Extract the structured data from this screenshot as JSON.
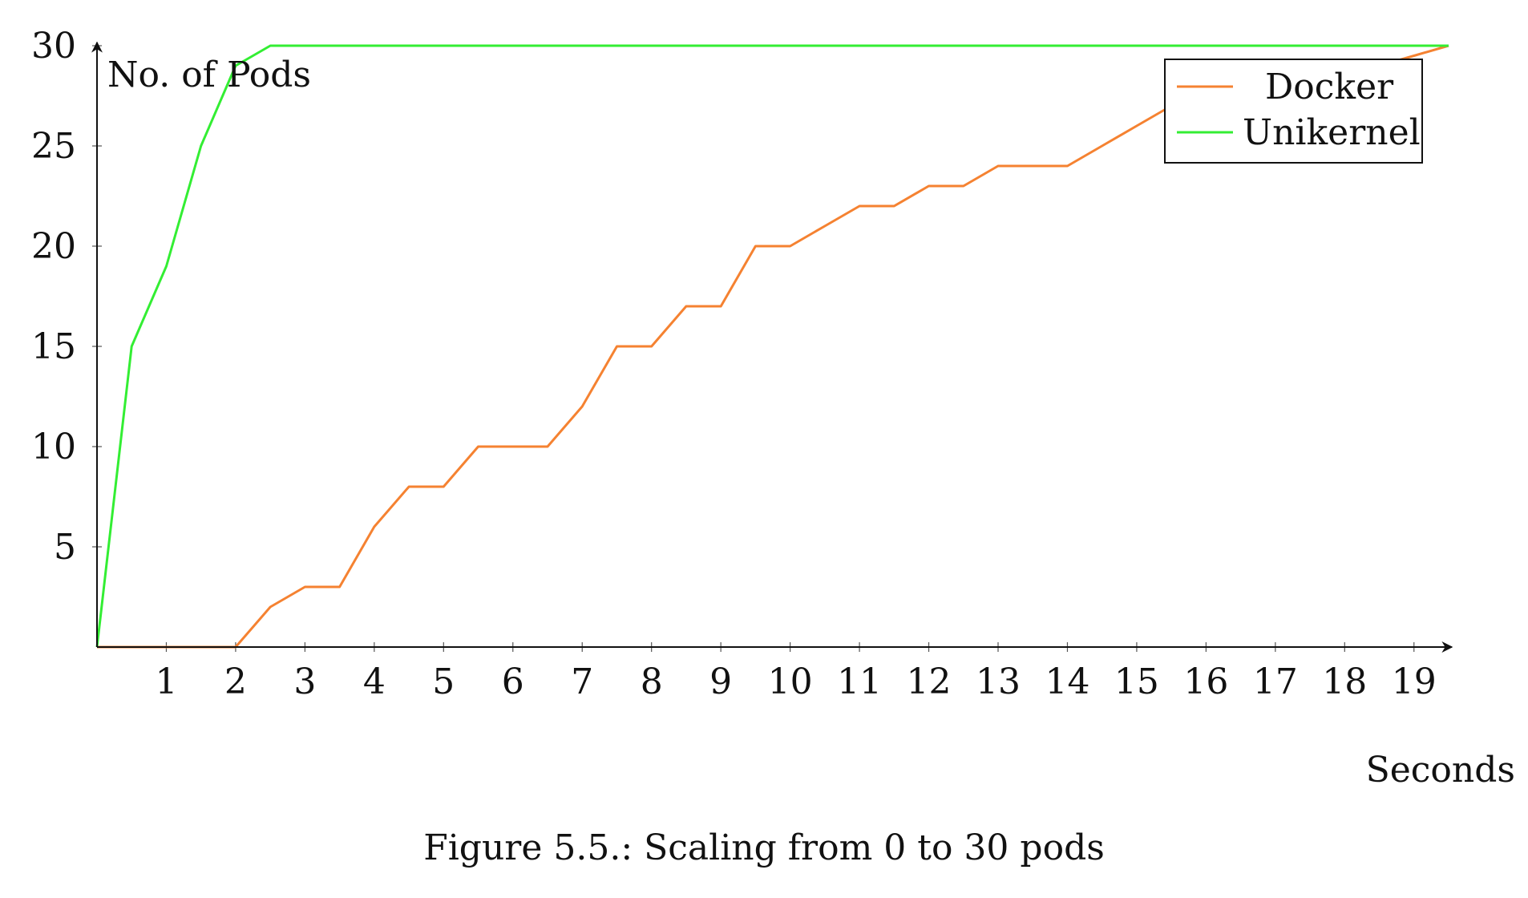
{
  "chart_data": {
    "type": "line",
    "title": "",
    "xlabel": "Seconds",
    "ylabel": "No. of Pods",
    "xlim": [
      0,
      19.5
    ],
    "ylim": [
      0,
      30
    ],
    "x_ticks": [
      1,
      2,
      3,
      4,
      5,
      6,
      7,
      8,
      9,
      10,
      11,
      12,
      13,
      14,
      15,
      16,
      17,
      18,
      19
    ],
    "y_ticks": [
      5,
      10,
      15,
      20,
      25,
      30
    ],
    "grid": false,
    "legend_position": "top-right",
    "series": [
      {
        "name": "Docker",
        "color": "#f58231",
        "x": [
          0,
          0.5,
          1,
          1.5,
          2,
          2.5,
          3,
          3.5,
          4,
          4.5,
          5,
          5.5,
          6,
          6.5,
          7,
          7.5,
          8,
          8.5,
          9,
          9.5,
          10,
          10.5,
          11,
          11.5,
          12,
          12.5,
          13,
          13.5,
          14,
          14.5,
          15,
          15.5,
          16,
          16.5,
          17,
          17.5,
          18,
          18.5,
          19,
          19.5
        ],
        "y": [
          0,
          0,
          0,
          0,
          0,
          2,
          3,
          3,
          6,
          8,
          8,
          10,
          10,
          10,
          12,
          15,
          15,
          17,
          17,
          20,
          20,
          21,
          22,
          22,
          23,
          23,
          24,
          24,
          24,
          25,
          26,
          27,
          28,
          28,
          28,
          28.5,
          28.5,
          29,
          29.5,
          30
        ]
      },
      {
        "name": "Unikernel",
        "color": "#33ee33",
        "x": [
          0,
          0.5,
          1,
          1.5,
          2,
          2.5,
          19.5
        ],
        "y": [
          0,
          15,
          19,
          25,
          29,
          30,
          30
        ]
      }
    ]
  },
  "caption": "Figure 5.5.: Scaling from 0 to 30 pods"
}
